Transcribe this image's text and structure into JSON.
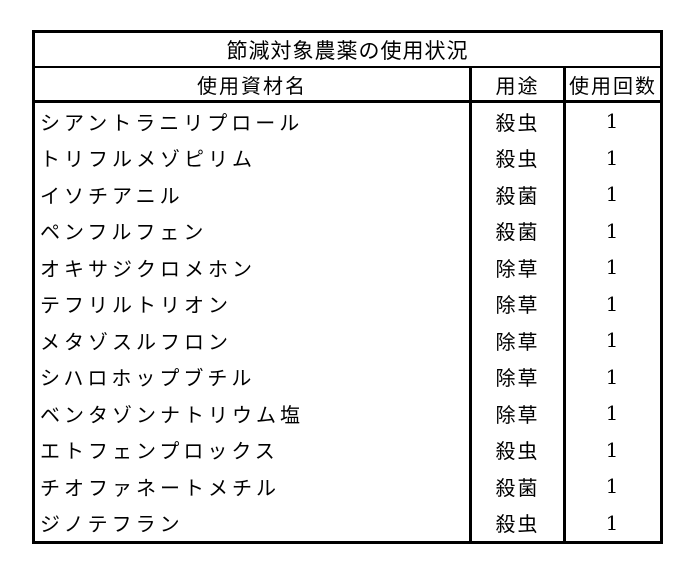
{
  "table": {
    "title": "節減対象農薬の使用状況",
    "columns": [
      "使用資材名",
      "用途",
      "使用回数"
    ],
    "rows": [
      {
        "name": "シアントラニリプロール",
        "use": "殺虫",
        "count": "1"
      },
      {
        "name": "トリフルメゾピリム",
        "use": "殺虫",
        "count": "1"
      },
      {
        "name": "イソチアニル",
        "use": "殺菌",
        "count": "1"
      },
      {
        "name": "ペンフルフェン",
        "use": "殺菌",
        "count": "1"
      },
      {
        "name": "オキサジクロメホン",
        "use": "除草",
        "count": "1"
      },
      {
        "name": "テフリルトリオン",
        "use": "除草",
        "count": "1"
      },
      {
        "name": "メタゾスルフロン",
        "use": "除草",
        "count": "1"
      },
      {
        "name": "シハロホップブチル",
        "use": "除草",
        "count": "1"
      },
      {
        "name": "ベンタゾンナトリウム塩",
        "use": "除草",
        "count": "1"
      },
      {
        "name": "エトフェンプロックス",
        "use": "殺虫",
        "count": "1"
      },
      {
        "name": "チオファネートメチル",
        "use": "殺菌",
        "count": "1"
      },
      {
        "name": "ジノテフラン",
        "use": "殺虫",
        "count": "1"
      }
    ]
  }
}
